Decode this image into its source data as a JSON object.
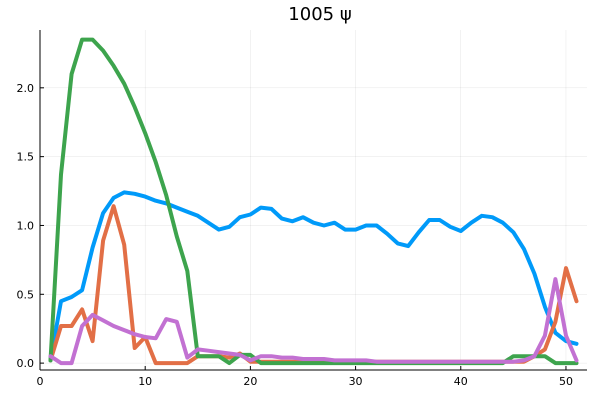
{
  "chart_data": {
    "type": "line",
    "title": "1005 ψ",
    "xlabel": "",
    "ylabel": "",
    "xlim": [
      0,
      52
    ],
    "ylim": [
      -0.05,
      2.42
    ],
    "xticks": [
      0,
      10,
      20,
      30,
      40,
      50
    ],
    "yticks": [
      0.0,
      0.5,
      1.0,
      1.5,
      2.0
    ],
    "xtick_labels": [
      "0",
      "10",
      "20",
      "30",
      "40",
      "50"
    ],
    "ytick_labels": [
      "0.0",
      "0.5",
      "1.0",
      "1.5",
      "2.0"
    ],
    "grid": true,
    "legend": "none",
    "x": [
      1,
      2,
      3,
      4,
      5,
      6,
      7,
      8,
      9,
      10,
      11,
      12,
      13,
      14,
      15,
      16,
      17,
      18,
      19,
      20,
      21,
      22,
      23,
      24,
      25,
      26,
      27,
      28,
      29,
      30,
      31,
      32,
      33,
      34,
      35,
      36,
      37,
      38,
      39,
      40,
      41,
      42,
      43,
      44,
      45,
      46,
      47,
      48,
      49,
      50,
      51
    ],
    "series": [
      {
        "color": "#009af9",
        "values": [
          0.02,
          0.45,
          0.48,
          0.53,
          0.84,
          1.09,
          1.2,
          1.24,
          1.23,
          1.21,
          1.18,
          1.16,
          1.13,
          1.1,
          1.07,
          1.02,
          0.97,
          0.99,
          1.06,
          1.08,
          1.13,
          1.12,
          1.05,
          1.03,
          1.06,
          1.02,
          1.0,
          1.02,
          0.97,
          0.97,
          1.0,
          1.0,
          0.94,
          0.87,
          0.85,
          0.95,
          1.04,
          1.04,
          0.99,
          0.96,
          1.02,
          1.07,
          1.06,
          1.02,
          0.95,
          0.83,
          0.65,
          0.41,
          0.22,
          0.16,
          0.14
        ]
      },
      {
        "color": "#e26f46",
        "values": [
          0.02,
          0.27,
          0.27,
          0.39,
          0.16,
          0.89,
          1.14,
          0.86,
          0.11,
          0.19,
          0.0,
          0.0,
          0.0,
          0.0,
          0.05,
          0.05,
          0.05,
          0.04,
          0.07,
          0.01,
          0.01,
          0.01,
          0.01,
          0.01,
          0.01,
          0.01,
          0.01,
          0.01,
          0.01,
          0.01,
          0.01,
          0.01,
          0.01,
          0.01,
          0.01,
          0.01,
          0.01,
          0.01,
          0.01,
          0.01,
          0.01,
          0.01,
          0.01,
          0.01,
          0.01,
          0.01,
          0.05,
          0.1,
          0.3,
          0.69,
          0.45
        ]
      },
      {
        "color": "#3da44d",
        "values": [
          0.02,
          1.37,
          2.1,
          2.35,
          2.35,
          2.27,
          2.16,
          2.03,
          1.86,
          1.67,
          1.46,
          1.22,
          0.92,
          0.67,
          0.05,
          0.05,
          0.05,
          0.0,
          0.06,
          0.06,
          0.0,
          0.0,
          0.0,
          0.0,
          0.0,
          0.0,
          0.0,
          0.0,
          0.0,
          0.0,
          0.0,
          0.0,
          0.0,
          0.0,
          0.0,
          0.0,
          0.0,
          0.0,
          0.0,
          0.0,
          0.0,
          0.0,
          0.0,
          0.0,
          0.05,
          0.05,
          0.05,
          0.05,
          0.0,
          0.0,
          0.0
        ]
      },
      {
        "color": "#c271d2",
        "values": [
          0.05,
          0.0,
          0.0,
          0.27,
          0.35,
          0.31,
          0.27,
          0.24,
          0.21,
          0.19,
          0.18,
          0.32,
          0.3,
          0.04,
          0.1,
          0.09,
          0.08,
          0.07,
          0.06,
          0.02,
          0.05,
          0.05,
          0.04,
          0.04,
          0.03,
          0.03,
          0.03,
          0.02,
          0.02,
          0.02,
          0.02,
          0.01,
          0.01,
          0.01,
          0.01,
          0.01,
          0.01,
          0.01,
          0.01,
          0.01,
          0.01,
          0.01,
          0.01,
          0.01,
          0.01,
          0.02,
          0.05,
          0.2,
          0.61,
          0.2,
          0.02
        ]
      }
    ]
  }
}
